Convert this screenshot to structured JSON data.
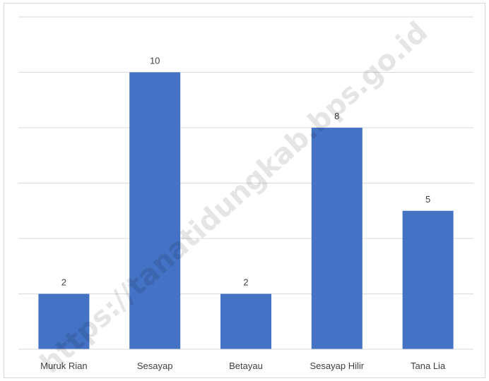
{
  "chart_data": {
    "type": "bar",
    "categories": [
      "Muruk Rian",
      "Sesayap",
      "Betayau",
      "Sesayap Hilir",
      "Tana Lia"
    ],
    "values": [
      2,
      10,
      2,
      8,
      5
    ],
    "data_labels": [
      "2",
      "10",
      "2",
      "8",
      "5"
    ],
    "title": "",
    "xlabel": "",
    "ylabel": "",
    "ylim": [
      0,
      12
    ],
    "y_axis_visible": false,
    "grid": true,
    "legend": "none",
    "bar_color": "#4472c4",
    "gridline_color": "#d9d9d9"
  },
  "watermark": {
    "text": "https://tanatidungkab.bps.go.id"
  }
}
